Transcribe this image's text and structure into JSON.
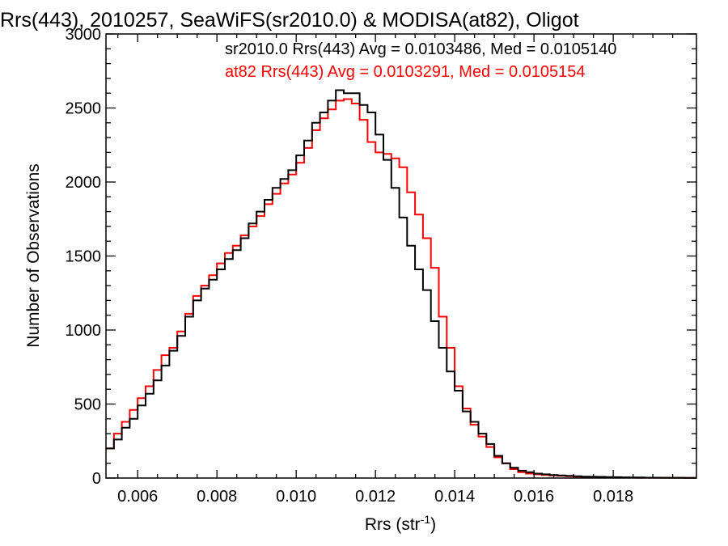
{
  "chart_data": {
    "type": "line",
    "title": "Rrs(443), 2010257, SeaWiFS(sr2010.0) & MODISA(at82), Oligot",
    "xlabel": "Rrs (str",
    "xlabel_superscript": "-1",
    "xlabel_suffix": ")",
    "ylabel": "Number of Observations",
    "xlim": [
      0.0052,
      0.0201
    ],
    "ylim": [
      0,
      3000
    ],
    "x_ticks": [
      "0.006",
      "0.008",
      "0.010",
      "0.012",
      "0.014",
      "0.016",
      "0.018"
    ],
    "y_ticks": [
      "0",
      "500",
      "1000",
      "1500",
      "2000",
      "2500",
      "3000"
    ],
    "grid": false,
    "step_histogram": true,
    "series": [
      {
        "name": "sr2010.0",
        "color": "#000000",
        "annotation": "sr2010.0 Rrs(443) Avg = 0.0103486, Med = 0.0105140",
        "x": [
          0.0052,
          0.0054,
          0.0056,
          0.0058,
          0.006,
          0.0062,
          0.0064,
          0.0066,
          0.0068,
          0.007,
          0.0072,
          0.0074,
          0.0076,
          0.0078,
          0.008,
          0.0082,
          0.0084,
          0.0086,
          0.0088,
          0.009,
          0.0092,
          0.0094,
          0.0096,
          0.0098,
          0.01,
          0.0102,
          0.0104,
          0.0106,
          0.0108,
          0.011,
          0.0112,
          0.0114,
          0.0116,
          0.0118,
          0.012,
          0.0122,
          0.0124,
          0.0126,
          0.0128,
          0.013,
          0.0132,
          0.0134,
          0.0136,
          0.0138,
          0.014,
          0.0142,
          0.0144,
          0.0146,
          0.0148,
          0.015,
          0.0152,
          0.0154,
          0.0156,
          0.0158,
          0.016,
          0.0162,
          0.0164,
          0.0166,
          0.0168,
          0.017,
          0.0172,
          0.0174,
          0.0176,
          0.0178,
          0.018,
          0.0182,
          0.0184,
          0.0186,
          0.0188,
          0.019,
          0.0192,
          0.0194,
          0.0196,
          0.0198,
          0.02
        ],
        "values": [
          200,
          260,
          340,
          400,
          490,
          570,
          660,
          760,
          860,
          960,
          1090,
          1200,
          1280,
          1340,
          1410,
          1480,
          1540,
          1620,
          1720,
          1800,
          1880,
          1960,
          2020,
          2080,
          2180,
          2280,
          2400,
          2470,
          2550,
          2620,
          2600,
          2600,
          2520,
          2470,
          2320,
          2150,
          1960,
          1760,
          1570,
          1410,
          1270,
          1060,
          880,
          720,
          590,
          450,
          380,
          300,
          230,
          150,
          100,
          70,
          50,
          40,
          30,
          25,
          20,
          18,
          15,
          12,
          10,
          9,
          8,
          7,
          6,
          5,
          4,
          4,
          3,
          3,
          2,
          2,
          2,
          1,
          1
        ]
      },
      {
        "name": "at82",
        "color": "#ff0000",
        "annotation": "at82 Rrs(443) Avg = 0.0103291, Med = 0.0105154",
        "x": [
          0.0052,
          0.0054,
          0.0056,
          0.0058,
          0.006,
          0.0062,
          0.0064,
          0.0066,
          0.0068,
          0.007,
          0.0072,
          0.0074,
          0.0076,
          0.0078,
          0.008,
          0.0082,
          0.0084,
          0.0086,
          0.0088,
          0.009,
          0.0092,
          0.0094,
          0.0096,
          0.0098,
          0.01,
          0.0102,
          0.0104,
          0.0106,
          0.0108,
          0.011,
          0.0112,
          0.0114,
          0.0116,
          0.0118,
          0.012,
          0.0122,
          0.0124,
          0.0126,
          0.0128,
          0.013,
          0.0132,
          0.0134,
          0.0136,
          0.0138,
          0.014,
          0.0142,
          0.0144,
          0.0146,
          0.0148,
          0.015,
          0.0152,
          0.0154,
          0.0156,
          0.0158,
          0.016,
          0.0162,
          0.0164,
          0.0166,
          0.0168,
          0.017,
          0.0172,
          0.0174,
          0.0176,
          0.0178,
          0.018,
          0.0182,
          0.0184,
          0.0186,
          0.0188,
          0.019,
          0.0192,
          0.0194,
          0.0196,
          0.0198,
          0.02
        ],
        "values": [
          200,
          300,
          380,
          460,
          540,
          620,
          730,
          830,
          880,
          990,
          1110,
          1230,
          1300,
          1370,
          1450,
          1520,
          1570,
          1640,
          1700,
          1770,
          1850,
          1920,
          1990,
          2050,
          2130,
          2230,
          2350,
          2430,
          2490,
          2550,
          2560,
          2530,
          2420,
          2270,
          2200,
          2190,
          2160,
          2100,
          1930,
          1780,
          1620,
          1420,
          1090,
          880,
          620,
          470,
          360,
          280,
          210,
          140,
          100,
          60,
          40,
          30,
          25,
          20,
          18,
          15,
          12,
          10,
          8,
          7,
          6,
          5,
          4,
          3,
          3,
          2,
          2,
          2,
          2,
          1,
          1,
          1,
          1
        ]
      }
    ]
  }
}
